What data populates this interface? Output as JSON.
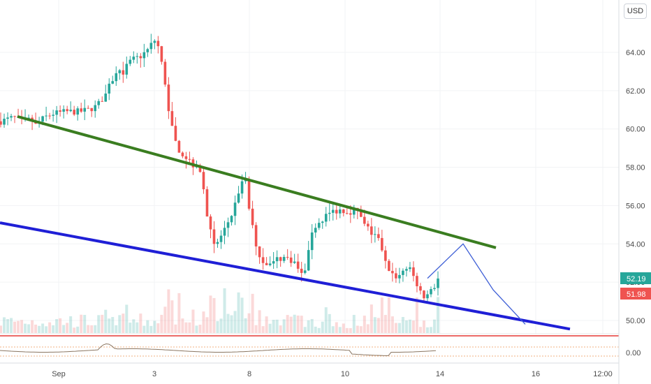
{
  "currency_button": "USD",
  "chart_data": {
    "type": "candlestick",
    "price_axis": {
      "ylim": [
        49.2,
        65.5
      ],
      "ticks": [
        50,
        52,
        54,
        56,
        58,
        60,
        62,
        64
      ],
      "tick_labels": [
        "50.00",
        "52.00",
        "54.00",
        "56.00",
        "58.00",
        "60.00",
        "62.00",
        "64.00"
      ]
    },
    "time_axis": {
      "tick_labels": [
        "Sep",
        "3",
        "8",
        "10",
        "14",
        "16",
        "12:00"
      ]
    },
    "price_labels": {
      "last_price": "52.19",
      "prev_close": "51.98",
      "last_price_color": "#26a69a",
      "prev_close_color": "#ef5350"
    },
    "oscillator": {
      "ticks": [
        0
      ],
      "tick_labels": [
        "0.00"
      ]
    },
    "price_path": [
      [
        0,
        60.4
      ],
      [
        3,
        60.6
      ],
      [
        5,
        60.4
      ],
      [
        7,
        60.5
      ],
      [
        8,
        60.2
      ],
      [
        10,
        60.6
      ],
      [
        12,
        60.8
      ],
      [
        15,
        60.9
      ],
      [
        18,
        60.9
      ],
      [
        20,
        61.0
      ],
      [
        22,
        61.2
      ],
      [
        24,
        61.8
      ],
      [
        26,
        62.8
      ],
      [
        28,
        63.0
      ],
      [
        30,
        63.6
      ],
      [
        32,
        63.8
      ],
      [
        34,
        64.2
      ],
      [
        35,
        64.7
      ],
      [
        36,
        64.3
      ],
      [
        37,
        63.2
      ],
      [
        38,
        61.6
      ],
      [
        39,
        60.3
      ],
      [
        40,
        59.3
      ],
      [
        41,
        58.8
      ],
      [
        43,
        58.4
      ],
      [
        45,
        57.9
      ],
      [
        46,
        57.6
      ],
      [
        47,
        55.6
      ],
      [
        48,
        54.9
      ],
      [
        49,
        53.8
      ],
      [
        51,
        54.7
      ],
      [
        53,
        55.6
      ],
      [
        54,
        56.4
      ],
      [
        55,
        57.2
      ],
      [
        56,
        57.3
      ],
      [
        57,
        55.5
      ],
      [
        58,
        54.4
      ],
      [
        59,
        53.4
      ],
      [
        60,
        53.1
      ],
      [
        62,
        52.9
      ],
      [
        63,
        53.2
      ],
      [
        65,
        53.3
      ],
      [
        67,
        53.1
      ],
      [
        68,
        52.7
      ],
      [
        69,
        52.3
      ],
      [
        70,
        53.0
      ],
      [
        71,
        54.3
      ],
      [
        72,
        55.0
      ],
      [
        74,
        55.4
      ],
      [
        76,
        55.7
      ],
      [
        78,
        55.8
      ],
      [
        79,
        55.7
      ],
      [
        80,
        55.7
      ],
      [
        81,
        55.8
      ],
      [
        82,
        55.6
      ],
      [
        83,
        55.0
      ],
      [
        84,
        54.8
      ],
      [
        85,
        54.5
      ],
      [
        86,
        54.3
      ],
      [
        87,
        53.9
      ],
      [
        88,
        53.0
      ],
      [
        89,
        52.6
      ],
      [
        90,
        52.3
      ],
      [
        91,
        52.3
      ],
      [
        92,
        52.6
      ],
      [
        93,
        52.8
      ],
      [
        94,
        52.5
      ],
      [
        95,
        52.0
      ],
      [
        96,
        51.6
      ],
      [
        97,
        51.2
      ],
      [
        98,
        51.4
      ],
      [
        99,
        51.7
      ],
      [
        100,
        52.19
      ]
    ],
    "trendlines": [
      {
        "name": "resistance",
        "color": "#3a7d20",
        "from": [
          60.65,
          "2020-09-01"
        ],
        "to": [
          53.8,
          "2020-09-15"
        ]
      },
      {
        "name": "support",
        "color": "#1f1fd6",
        "from": [
          55.1,
          "2020-08-31"
        ],
        "to": [
          49.55,
          "2020-09-16"
        ]
      }
    ],
    "projection": {
      "color": "#3e5fd6",
      "points": [
        52.2,
        54.0,
        49.8
      ]
    },
    "colors": {
      "up": "#26a69a",
      "down": "#ef5350"
    }
  }
}
